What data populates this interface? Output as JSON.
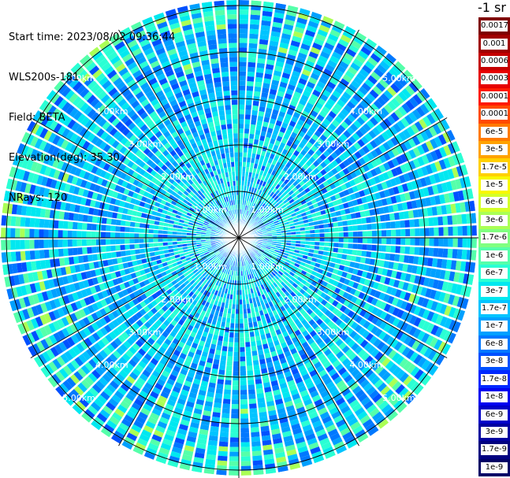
{
  "header": {
    "start_time": "Start time: 2023/08/02 09:36:44",
    "instrument": "WLS200s-181",
    "field": "Field: BETA",
    "elevation": "Elevation(deg): 35.30",
    "nrays": "NRays: 120"
  },
  "colorbar": {
    "title": "-1 sr",
    "levels": [
      {
        "label": "0.0017",
        "color": "#7f0000"
      },
      {
        "label": "0.001",
        "color": "#a00000"
      },
      {
        "label": "0.0006",
        "color": "#c40000"
      },
      {
        "label": "0.0003",
        "color": "#e60000"
      },
      {
        "label": "0.00017",
        "color": "#ff1a00"
      },
      {
        "label": "0.0001",
        "color": "#ff4a00"
      },
      {
        "label": "6e-5",
        "color": "#ff7a00"
      },
      {
        "label": "3e-5",
        "color": "#ffa200"
      },
      {
        "label": "1.7e-5",
        "color": "#ffd000"
      },
      {
        "label": "1e-5",
        "color": "#f8f800"
      },
      {
        "label": "6e-6",
        "color": "#d4ff2a"
      },
      {
        "label": "3e-6",
        "color": "#aaff55"
      },
      {
        "label": "1.7e-6",
        "color": "#80ff80"
      },
      {
        "label": "1e-6",
        "color": "#55ffaa"
      },
      {
        "label": "6e-7",
        "color": "#2affd4"
      },
      {
        "label": "3e-7",
        "color": "#00e8f0"
      },
      {
        "label": "1.7e-7",
        "color": "#00c4ff"
      },
      {
        "label": "1e-7",
        "color": "#00a0ff"
      },
      {
        "label": "6e-8",
        "color": "#0078ff"
      },
      {
        "label": "3e-8",
        "color": "#0050ff"
      },
      {
        "label": "1.7e-8",
        "color": "#0028ff"
      },
      {
        "label": "1e-8",
        "color": "#0000f0"
      },
      {
        "label": "6e-9",
        "color": "#0000c8"
      },
      {
        "label": "3e-9",
        "color": "#00009f"
      },
      {
        "label": "1.7e-9",
        "color": "#000080"
      },
      {
        "label": "1e-9",
        "color": "#000066"
      }
    ]
  },
  "range_labels": [
    "1.00km",
    "2.00km",
    "3.00km",
    "4.00km",
    "5.00km"
  ],
  "rays": 120
}
